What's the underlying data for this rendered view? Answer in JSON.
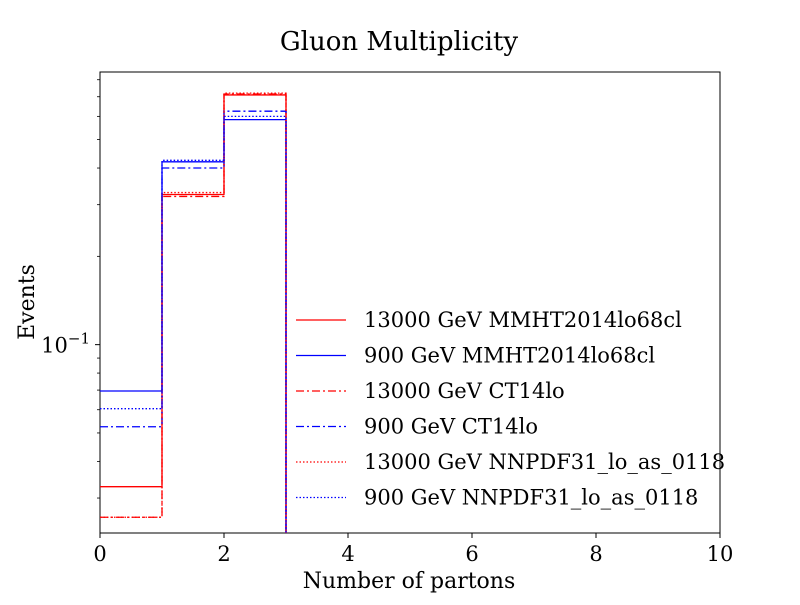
{
  "chart_data": {
    "type": "line",
    "drawstyle": "steps",
    "title": "Gluon Multiplicity",
    "xlabel": "Number of partons",
    "ylabel": "Events",
    "xlim": [
      0,
      10
    ],
    "ylim": [
      0.0228,
      0.85
    ],
    "yscale": "log",
    "x_ticks": [
      "0",
      "2",
      "4",
      "6",
      "8",
      "10"
    ],
    "x_tick_values": [
      0,
      2,
      4,
      6,
      8,
      10
    ],
    "y_tick_label": "10",
    "y_tick_exponent": "−1",
    "y_tick_value": 0.1,
    "bin_edges": [
      0,
      1,
      2,
      3
    ],
    "legend_position": "lower-right",
    "grid": false,
    "series": [
      {
        "name": "13000 GeV MMHT2014lo68cl",
        "color": "#ff0000",
        "style": "solid",
        "values": [
          0.0328,
          0.325,
          0.71
        ]
      },
      {
        "name": "900 GeV MMHT2014lo68cl",
        "color": "#0000ff",
        "style": "solid",
        "values": [
          0.0695,
          0.42,
          0.585
        ]
      },
      {
        "name": "13000 GeV CT14lo",
        "color": "#ff0000",
        "style": "dashdot",
        "values": [
          0.0258,
          0.32,
          0.715
        ]
      },
      {
        "name": "900 GeV CT14lo",
        "color": "#0000ff",
        "style": "dashdot",
        "values": [
          0.0525,
          0.4,
          0.625
        ]
      },
      {
        "name": "13000 GeV NNPDF31_lo_as_0118",
        "color": "#ff0000",
        "style": "dotted",
        "values": [
          0.0258,
          0.33,
          0.72
        ]
      },
      {
        "name": "900 GeV NNPDF31_lo_as_0118",
        "color": "#0000ff",
        "style": "dotted",
        "values": [
          0.0605,
          0.425,
          0.6
        ]
      }
    ]
  }
}
